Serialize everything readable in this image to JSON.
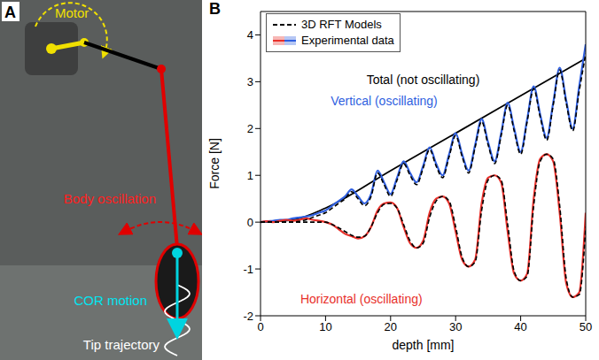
{
  "panel_a": {
    "label": "A",
    "texts": {
      "motor": "Motor",
      "body": "Body oscillation",
      "cor": "COR motion",
      "tip": "Tip trajectory"
    }
  },
  "chart_data": {
    "panel_label": "B",
    "type": "line",
    "x_label": "depth [mm]",
    "y_label": "Force [N]",
    "xlim": [
      0,
      50
    ],
    "xticks": [
      0,
      10,
      20,
      30,
      40,
      50
    ],
    "ylim": [
      -2,
      4.5
    ],
    "yticks": [
      -2,
      -1,
      0,
      1,
      2,
      3,
      4
    ],
    "grid": false,
    "legend": "upper left",
    "legend_entries": [
      {
        "name": "3D RFT Models",
        "line_style": "dashed",
        "color": "#000000"
      },
      {
        "name": "Experimental data",
        "colors": [
          "#e8302a",
          "#2f5fe0"
        ]
      }
    ],
    "x": [
      0,
      1,
      2,
      3,
      4,
      5,
      6,
      7,
      8,
      9,
      10,
      11,
      12,
      13,
      14,
      15,
      16,
      17,
      18,
      19,
      20,
      21,
      22,
      23,
      24,
      25,
      26,
      27,
      28,
      29,
      30,
      31,
      32,
      33,
      34,
      35,
      36,
      37,
      38,
      39,
      40,
      41,
      42,
      43,
      44,
      45,
      46,
      47,
      48,
      49,
      50
    ],
    "series": [
      {
        "name": "Total (not oscillating)",
        "color": "#000000",
        "line_style": "solid",
        "x": [
          0,
          5,
          10,
          20,
          30,
          40,
          50
        ],
        "values": [
          0,
          0.05,
          0.3,
          1.1,
          1.9,
          2.7,
          3.5
        ]
      },
      {
        "name": "Vertical (oscillating)",
        "color": "#2f5fe0",
        "line_style": "solid",
        "values": [
          0,
          0.02,
          0.03,
          0.05,
          0.05,
          0.08,
          0.1,
          0.12,
          0.15,
          0.2,
          0.25,
          0.35,
          0.45,
          0.55,
          0.7,
          0.55,
          0.4,
          0.6,
          1.1,
          0.85,
          0.6,
          0.95,
          1.3,
          1.05,
          0.85,
          1.2,
          1.6,
          1.25,
          1.0,
          1.45,
          1.9,
          1.45,
          1.1,
          1.65,
          2.2,
          1.7,
          1.3,
          1.9,
          2.55,
          2.0,
          1.5,
          2.2,
          2.9,
          2.3,
          1.8,
          2.55,
          3.3,
          2.6,
          2.0,
          2.9,
          3.8
        ],
        "model": [
          0,
          0,
          0,
          0,
          0,
          0,
          0.02,
          0.05,
          0.1,
          0.15,
          0.2,
          0.3,
          0.4,
          0.5,
          0.65,
          0.5,
          0.35,
          0.55,
          1.05,
          0.8,
          0.55,
          0.9,
          1.25,
          1.0,
          0.8,
          1.15,
          1.55,
          1.2,
          0.95,
          1.4,
          1.85,
          1.4,
          1.05,
          1.6,
          2.15,
          1.65,
          1.25,
          1.85,
          2.5,
          1.95,
          1.45,
          2.15,
          2.85,
          2.25,
          1.75,
          2.5,
          3.25,
          2.55,
          1.95,
          2.8,
          3.6
        ]
      },
      {
        "name": "Horizontal (oscillating)",
        "color": "#e8302a",
        "line_style": "solid",
        "values": [
          0,
          0.02,
          0,
          0.03,
          0.05,
          0.03,
          0.05,
          0.08,
          0.05,
          0.03,
          0,
          -0.05,
          -0.15,
          -0.25,
          -0.3,
          -0.35,
          -0.3,
          -0.1,
          0.25,
          0.4,
          0.42,
          0.3,
          -0.1,
          -0.45,
          -0.55,
          -0.4,
          0.2,
          0.5,
          0.55,
          0.4,
          -0.2,
          -0.8,
          -0.95,
          -0.8,
          0.4,
          0.95,
          1.0,
          0.85,
          -0.2,
          -1.1,
          -1.25,
          -1.1,
          0.5,
          1.35,
          1.45,
          1.3,
          0.2,
          -1.3,
          -1.6,
          -1.5,
          0.2
        ],
        "model": [
          0,
          0,
          0,
          0,
          0,
          0,
          0,
          0,
          0,
          0,
          0,
          -0.05,
          -0.12,
          -0.2,
          -0.28,
          -0.32,
          -0.3,
          -0.1,
          0.2,
          0.38,
          0.4,
          0.3,
          -0.05,
          -0.4,
          -0.55,
          -0.45,
          0.1,
          0.45,
          0.55,
          0.45,
          -0.1,
          -0.75,
          -0.95,
          -0.85,
          0.25,
          0.9,
          1.0,
          0.9,
          -0.05,
          -1.05,
          -1.25,
          -1.15,
          0.35,
          1.3,
          1.45,
          1.35,
          0.35,
          -1.2,
          -1.6,
          -1.55,
          -0.1
        ]
      }
    ]
  }
}
